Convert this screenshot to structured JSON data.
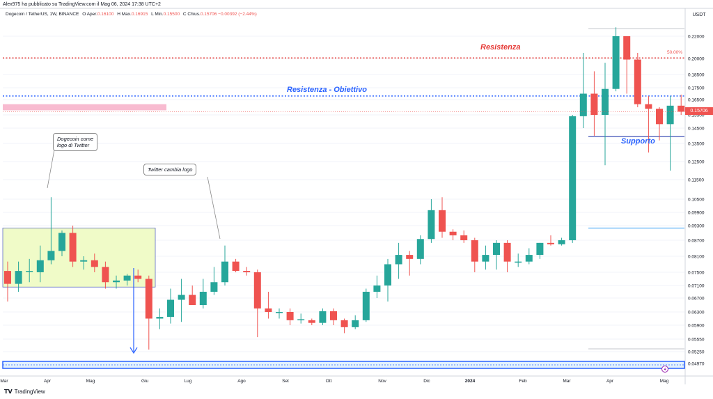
{
  "header": {
    "published_by": "Alex975 ha pubblicato su TradingView.com il Mag 06, 2024 17:38 UTC+2",
    "symbol": "Dogecoin / TetherUS, 1W, BINANCE",
    "o_key": "O",
    "o_label": "Aper.",
    "o_val": "0.16100",
    "h_key": "H",
    "h_label": "Max.",
    "h_val": "0.16915",
    "l_key": "L",
    "l_label": "Min.",
    "l_val": "0.15500",
    "c_key": "C",
    "c_label": "Chius.",
    "c_val": "0.15706",
    "change": "−0.00392 (−2.44%)"
  },
  "axis": {
    "currency": "USDT",
    "price_labels": [
      "0.22000",
      "0.20000",
      "0.18500",
      "0.17500",
      "0.16500",
      "0.15500",
      "0.14500",
      "0.13500",
      "0.12500",
      "0.11500",
      "0.10500",
      "0.09900",
      "0.09300",
      "0.08700",
      "0.08100",
      "0.07500",
      "0.07100",
      "0.06700",
      "0.06300",
      "0.05900",
      "0.05550",
      "0.05250",
      "0.04970"
    ],
    "current_price": "0.15706",
    "time_labels": [
      "Mar",
      "Apr",
      "Mag",
      "Giu",
      "Lug",
      "Ago",
      "Set",
      "Ott",
      "Nov",
      "Dic",
      "2024",
      "Feb",
      "Mar",
      "Apr",
      "Mag"
    ]
  },
  "annotations": {
    "resistenza": "Resistenza",
    "resistenza_obiettivo": "Resistenza - Obiettivo",
    "supporto": "Supporto",
    "fib_pct": "50.00%",
    "callout1_line1": "Dogecoin come",
    "callout1_line2": "logo di Twitter",
    "callout2": "Twitter cambia logo"
  },
  "colors": {
    "up": "#26a69a",
    "down": "#ef5350",
    "resistance": "#e53935",
    "target": "#2962ff",
    "support": "#3f51b5",
    "pink_zone": "#f8bbd0",
    "yellow_zone": "#f0fbc8"
  },
  "footer": {
    "brand": "TradingView"
  },
  "chart_data": {
    "type": "candlestick",
    "symbol": "DOGE/USDT",
    "interval": "1W",
    "candles": [
      {
        "o": 0.0755,
        "h": 0.079,
        "l": 0.066,
        "c": 0.0715
      },
      {
        "o": 0.0715,
        "h": 0.079,
        "l": 0.069,
        "c": 0.0755
      },
      {
        "o": 0.0755,
        "h": 0.08,
        "l": 0.072,
        "c": 0.0755
      },
      {
        "o": 0.075,
        "h": 0.085,
        "l": 0.072,
        "c": 0.0795
      },
      {
        "o": 0.0795,
        "h": 0.106,
        "l": 0.078,
        "c": 0.083
      },
      {
        "o": 0.083,
        "h": 0.091,
        "l": 0.081,
        "c": 0.09
      },
      {
        "o": 0.09,
        "h": 0.093,
        "l": 0.077,
        "c": 0.079
      },
      {
        "o": 0.079,
        "h": 0.081,
        "l": 0.076,
        "c": 0.0795
      },
      {
        "o": 0.0795,
        "h": 0.082,
        "l": 0.075,
        "c": 0.077
      },
      {
        "o": 0.077,
        "h": 0.079,
        "l": 0.07,
        "c": 0.072
      },
      {
        "o": 0.072,
        "h": 0.074,
        "l": 0.07,
        "c": 0.0725
      },
      {
        "o": 0.0725,
        "h": 0.0745,
        "l": 0.071,
        "c": 0.074
      },
      {
        "o": 0.074,
        "h": 0.076,
        "l": 0.072,
        "c": 0.073
      },
      {
        "o": 0.073,
        "h": 0.074,
        "l": 0.053,
        "c": 0.061
      },
      {
        "o": 0.061,
        "h": 0.064,
        "l": 0.058,
        "c": 0.0615
      },
      {
        "o": 0.0615,
        "h": 0.07,
        "l": 0.0595,
        "c": 0.0665
      },
      {
        "o": 0.0665,
        "h": 0.073,
        "l": 0.06,
        "c": 0.068
      },
      {
        "o": 0.068,
        "h": 0.071,
        "l": 0.065,
        "c": 0.065
      },
      {
        "o": 0.065,
        "h": 0.073,
        "l": 0.064,
        "c": 0.069
      },
      {
        "o": 0.069,
        "h": 0.077,
        "l": 0.068,
        "c": 0.072
      },
      {
        "o": 0.072,
        "h": 0.085,
        "l": 0.071,
        "c": 0.079
      },
      {
        "o": 0.079,
        "h": 0.08,
        "l": 0.075,
        "c": 0.0755
      },
      {
        "o": 0.0755,
        "h": 0.077,
        "l": 0.074,
        "c": 0.075
      },
      {
        "o": 0.075,
        "h": 0.076,
        "l": 0.056,
        "c": 0.064
      },
      {
        "o": 0.064,
        "h": 0.069,
        "l": 0.061,
        "c": 0.063
      },
      {
        "o": 0.063,
        "h": 0.064,
        "l": 0.061,
        "c": 0.063
      },
      {
        "o": 0.063,
        "h": 0.064,
        "l": 0.059,
        "c": 0.0605
      },
      {
        "o": 0.0605,
        "h": 0.0625,
        "l": 0.0595,
        "c": 0.0608
      },
      {
        "o": 0.0605,
        "h": 0.061,
        "l": 0.059,
        "c": 0.0597
      },
      {
        "o": 0.0597,
        "h": 0.064,
        "l": 0.059,
        "c": 0.0632
      },
      {
        "o": 0.0632,
        "h": 0.064,
        "l": 0.059,
        "c": 0.0605
      },
      {
        "o": 0.0605,
        "h": 0.061,
        "l": 0.057,
        "c": 0.0585
      },
      {
        "o": 0.0585,
        "h": 0.062,
        "l": 0.058,
        "c": 0.0605
      },
      {
        "o": 0.0605,
        "h": 0.07,
        "l": 0.06,
        "c": 0.069
      },
      {
        "o": 0.069,
        "h": 0.074,
        "l": 0.067,
        "c": 0.071
      },
      {
        "o": 0.071,
        "h": 0.08,
        "l": 0.066,
        "c": 0.078
      },
      {
        "o": 0.078,
        "h": 0.086,
        "l": 0.073,
        "c": 0.0815
      },
      {
        "o": 0.0815,
        "h": 0.083,
        "l": 0.074,
        "c": 0.08
      },
      {
        "o": 0.08,
        "h": 0.089,
        "l": 0.078,
        "c": 0.0875
      },
      {
        "o": 0.0875,
        "h": 0.105,
        "l": 0.086,
        "c": 0.1
      },
      {
        "o": 0.1,
        "h": 0.106,
        "l": 0.088,
        "c": 0.0905
      },
      {
        "o": 0.0905,
        "h": 0.0915,
        "l": 0.087,
        "c": 0.089
      },
      {
        "o": 0.089,
        "h": 0.091,
        "l": 0.086,
        "c": 0.087
      },
      {
        "o": 0.087,
        "h": 0.088,
        "l": 0.075,
        "c": 0.079
      },
      {
        "o": 0.079,
        "h": 0.085,
        "l": 0.076,
        "c": 0.0815
      },
      {
        "o": 0.0815,
        "h": 0.087,
        "l": 0.076,
        "c": 0.086
      },
      {
        "o": 0.086,
        "h": 0.087,
        "l": 0.075,
        "c": 0.079
      },
      {
        "o": 0.079,
        "h": 0.082,
        "l": 0.077,
        "c": 0.079
      },
      {
        "o": 0.079,
        "h": 0.084,
        "l": 0.078,
        "c": 0.0815
      },
      {
        "o": 0.0815,
        "h": 0.086,
        "l": 0.08,
        "c": 0.086
      },
      {
        "o": 0.086,
        "h": 0.089,
        "l": 0.085,
        "c": 0.0855
      },
      {
        "o": 0.0855,
        "h": 0.088,
        "l": 0.085,
        "c": 0.087
      },
      {
        "o": 0.087,
        "h": 0.155,
        "l": 0.086,
        "c": 0.154
      },
      {
        "o": 0.154,
        "h": 0.205,
        "l": 0.145,
        "c": 0.17
      },
      {
        "o": 0.17,
        "h": 0.188,
        "l": 0.14,
        "c": 0.155
      },
      {
        "o": 0.155,
        "h": 0.196,
        "l": 0.123,
        "c": 0.174
      },
      {
        "o": 0.174,
        "h": 0.228,
        "l": 0.172,
        "c": 0.22
      },
      {
        "o": 0.22,
        "h": 0.22,
        "l": 0.17,
        "c": 0.199
      },
      {
        "o": 0.199,
        "h": 0.205,
        "l": 0.16,
        "c": 0.162
      },
      {
        "o": 0.162,
        "h": 0.168,
        "l": 0.13,
        "c": 0.159
      },
      {
        "o": 0.159,
        "h": 0.16,
        "l": 0.137,
        "c": 0.148
      },
      {
        "o": 0.148,
        "h": 0.168,
        "l": 0.12,
        "c": 0.161
      },
      {
        "o": 0.161,
        "h": 0.1692,
        "l": 0.155,
        "c": 0.1571
      }
    ],
    "lines": {
      "resistenza": 0.2005,
      "resistenza_obiettivo": 0.168,
      "supporto": 0.1395,
      "support_lower": 0.092,
      "lower_band": 0.0497
    },
    "pink_zone": [
      0.162,
      0.158
    ],
    "yellow_zone": [
      0.092,
      0.0705
    ],
    "ylim": [
      0.048,
      0.23
    ]
  }
}
